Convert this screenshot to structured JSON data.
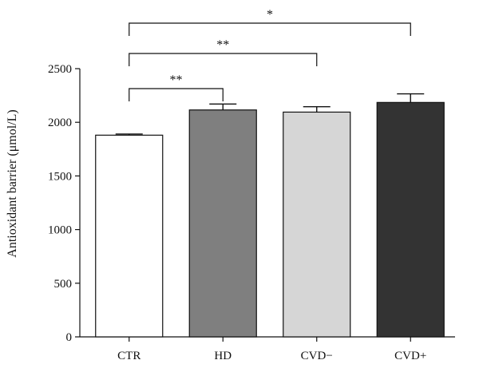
{
  "chart_data": {
    "type": "bar",
    "title": "",
    "xlabel": "",
    "ylabel": "Antioxidant barrier (μmol/L)",
    "ylim": [
      0,
      2500
    ],
    "yticks": [
      0,
      500,
      1000,
      1500,
      2000,
      2500
    ],
    "grid": false,
    "categories": [
      "CTR",
      "HD",
      "CVD−",
      "CVD+"
    ],
    "values": [
      1880,
      2115,
      2095,
      2185
    ],
    "errors": [
      10,
      55,
      50,
      80
    ],
    "colors": [
      "#ffffff",
      "#7f7f7f",
      "#d6d6d6",
      "#333333"
    ],
    "significance": [
      {
        "from": 0,
        "to": 1,
        "label": "**"
      },
      {
        "from": 0,
        "to": 2,
        "label": "**"
      },
      {
        "from": 0,
        "to": 3,
        "label": "*"
      }
    ]
  }
}
